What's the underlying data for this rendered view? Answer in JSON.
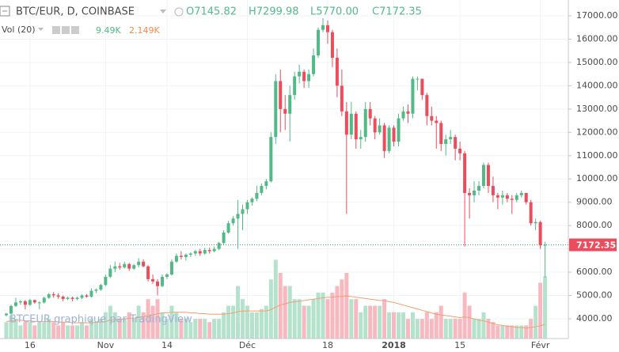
{
  "chart_data": {
    "type": "candlestick",
    "title": "BTC/EUR, D, COINBASE",
    "ohlc_text": [
      "O7145.82",
      "H7299.98",
      "L5770.00",
      "C7172.35"
    ],
    "volume_title": "Vol (20)",
    "volume_text": [
      "9.49K",
      "2.149K"
    ],
    "watermark": "BTCEUR graphique par TradingView",
    "up_color": "#53b987",
    "down_color": "#eb4d5c",
    "volume_up_color": "#b5e2cc",
    "volume_down_color": "#f7b8bf",
    "volume_ma_color": "#f0a070",
    "last_price_color": "#eb4d5c",
    "grid": true,
    "ylim": [
      3150,
      17680
    ],
    "yticks": [
      {
        "value": 4000,
        "label": "4000.00"
      },
      {
        "value": 5000,
        "label": "5000.00"
      },
      {
        "value": 6000,
        "label": "6000.00"
      },
      {
        "value": 7000,
        "label": "7000.00"
      },
      {
        "value": 8000,
        "label": "8000.00"
      },
      {
        "value": 9000,
        "label": "9000.00"
      },
      {
        "value": 10000,
        "label": "10000.00"
      },
      {
        "value": 11000,
        "label": "11000.00"
      },
      {
        "value": 12000,
        "label": "12000.00"
      },
      {
        "value": 13000,
        "label": "13000.00"
      },
      {
        "value": 14000,
        "label": "14000.00"
      },
      {
        "value": 15000,
        "label": "15000.00"
      },
      {
        "value": 16000,
        "label": "16000.00"
      },
      {
        "value": 17000,
        "label": "17000.00"
      }
    ],
    "xticks": [
      {
        "value": 5,
        "label": "16"
      },
      {
        "value": 21,
        "label": "Nov"
      },
      {
        "value": 34,
        "label": "14"
      },
      {
        "value": 51,
        "label": "Déc"
      },
      {
        "value": 68,
        "label": "18"
      },
      {
        "value": 82,
        "label": "2018"
      },
      {
        "value": 96,
        "label": "15"
      },
      {
        "value": 113,
        "label": "Févr"
      }
    ],
    "candles": [
      [
        4150,
        4250,
        4100,
        4220
      ],
      [
        4220,
        4600,
        4200,
        4550
      ],
      [
        4550,
        4900,
        4500,
        4700
      ],
      [
        4700,
        4800,
        4600,
        4750
      ],
      [
        4750,
        4800,
        4400,
        4600
      ],
      [
        4600,
        4850,
        4550,
        4800
      ],
      [
        4800,
        4820,
        4650,
        4700
      ],
      [
        4700,
        4750,
        4400,
        4700
      ],
      [
        4700,
        4950,
        4650,
        4900
      ],
      [
        4900,
        5100,
        4850,
        5050
      ],
      [
        5050,
        5150,
        4900,
        5000
      ],
      [
        5000,
        5100,
        4850,
        4950
      ],
      [
        4950,
        5000,
        4750,
        4850
      ],
      [
        4850,
        4950,
        4800,
        4900
      ],
      [
        4900,
        4950,
        4750,
        4850
      ],
      [
        4850,
        4950,
        4800,
        4900
      ],
      [
        4900,
        5050,
        4850,
        5000
      ],
      [
        5000,
        5050,
        4900,
        4950
      ],
      [
        4950,
        5300,
        4900,
        5200
      ],
      [
        5200,
        5300,
        5100,
        5250
      ],
      [
        5250,
        5500,
        5200,
        5450
      ],
      [
        5450,
        5900,
        5400,
        5800
      ],
      [
        5800,
        6300,
        5750,
        6150
      ],
      [
        6150,
        6450,
        6000,
        6250
      ],
      [
        6250,
        6400,
        6100,
        6200
      ],
      [
        6200,
        6450,
        6150,
        6350
      ],
      [
        6350,
        6400,
        6050,
        6150
      ],
      [
        6150,
        6350,
        6100,
        6300
      ],
      [
        6300,
        6600,
        6200,
        6450
      ],
      [
        6450,
        6550,
        6200,
        6250
      ],
      [
        6250,
        6300,
        5600,
        5700
      ],
      [
        5700,
        5900,
        5500,
        5600
      ],
      [
        5600,
        5700,
        5000,
        5400
      ],
      [
        5400,
        5900,
        5350,
        5800
      ],
      [
        5800,
        5950,
        5700,
        5900
      ],
      [
        5900,
        6550,
        5850,
        6450
      ],
      [
        6450,
        6800,
        6400,
        6700
      ],
      [
        6700,
        6900,
        6550,
        6650
      ],
      [
        6650,
        6800,
        6500,
        6750
      ],
      [
        6750,
        6850,
        6650,
        6800
      ],
      [
        6800,
        6950,
        6700,
        6900
      ],
      [
        6900,
        7000,
        6700,
        6800
      ],
      [
        6800,
        7050,
        6750,
        6950
      ],
      [
        6950,
        7050,
        6800,
        6900
      ],
      [
        6900,
        7100,
        6850,
        7000
      ],
      [
        7000,
        7300,
        6950,
        7250
      ],
      [
        7250,
        7800,
        7200,
        7700
      ],
      [
        7700,
        8200,
        7650,
        8100
      ],
      [
        8100,
        8400,
        8000,
        8300
      ],
      [
        8300,
        9100,
        7000,
        8500
      ],
      [
        8500,
        8900,
        7800,
        8700
      ],
      [
        8700,
        9100,
        8500,
        9000
      ],
      [
        9000,
        9200,
        8850,
        9150
      ],
      [
        9150,
        9700,
        9050,
        9400
      ],
      [
        9400,
        9800,
        9300,
        9700
      ],
      [
        9700,
        10000,
        9550,
        9900
      ],
      [
        9900,
        12000,
        9850,
        11800
      ],
      [
        11800,
        14500,
        11500,
        14200
      ],
      [
        14200,
        14700,
        12000,
        13000
      ],
      [
        13000,
        13600,
        12100,
        12800
      ],
      [
        12800,
        14000,
        11600,
        13600
      ],
      [
        13600,
        14600,
        13400,
        14400
      ],
      [
        14400,
        14900,
        14100,
        14600
      ],
      [
        14600,
        14700,
        13900,
        14200
      ],
      [
        14200,
        14700,
        13900,
        14500
      ],
      [
        14500,
        15600,
        14400,
        15300
      ],
      [
        15300,
        16500,
        15200,
        16400
      ],
      [
        16400,
        16900,
        16300,
        16600
      ],
      [
        16600,
        16800,
        15800,
        16300
      ],
      [
        16300,
        16400,
        14800,
        15200
      ],
      [
        15200,
        15600,
        13500,
        14000
      ],
      [
        14000,
        14700,
        12700,
        12900
      ],
      [
        12900,
        13300,
        8500,
        11900
      ],
      [
        11900,
        13300,
        11700,
        12800
      ],
      [
        12800,
        12900,
        11300,
        11700
      ],
      [
        11700,
        12100,
        11300,
        11800
      ],
      [
        11800,
        13300,
        11600,
        13000
      ],
      [
        13000,
        13300,
        12300,
        12600
      ],
      [
        12600,
        12700,
        11700,
        12000
      ],
      [
        12000,
        12600,
        11900,
        12300
      ],
      [
        12300,
        12400,
        10900,
        11200
      ],
      [
        11200,
        12300,
        11100,
        12200
      ],
      [
        12200,
        12300,
        11400,
        11600
      ],
      [
        11600,
        12800,
        11400,
        12600
      ],
      [
        12600,
        13100,
        12500,
        12900
      ],
      [
        12900,
        13200,
        12400,
        12800
      ],
      [
        12800,
        14400,
        12600,
        14300
      ],
      [
        14300,
        14400,
        13800,
        14300
      ],
      [
        14300,
        14300,
        13400,
        13600
      ],
      [
        13600,
        13700,
        12300,
        12700
      ],
      [
        12700,
        13100,
        12300,
        12500
      ],
      [
        12500,
        12700,
        11300,
        12400
      ],
      [
        12400,
        12500,
        11200,
        11500
      ],
      [
        11500,
        11900,
        11000,
        11700
      ],
      [
        11700,
        12100,
        11500,
        11800
      ],
      [
        11800,
        11900,
        10800,
        11300
      ],
      [
        11300,
        11600,
        10800,
        11100
      ],
      [
        11100,
        11200,
        7100,
        9400
      ],
      [
        9400,
        9600,
        8300,
        9300
      ],
      [
        9300,
        9900,
        9000,
        9500
      ],
      [
        9500,
        9900,
        9300,
        9700
      ],
      [
        9700,
        10700,
        9600,
        10600
      ],
      [
        10600,
        10700,
        9400,
        9700
      ],
      [
        9700,
        10100,
        9000,
        9300
      ],
      [
        9300,
        9400,
        8700,
        9200
      ],
      [
        9200,
        9500,
        8900,
        9300
      ],
      [
        9300,
        9400,
        9000,
        9150
      ],
      [
        9150,
        9300,
        8500,
        9100
      ],
      [
        9100,
        9400,
        9000,
        9300
      ],
      [
        9300,
        9500,
        9200,
        9400
      ],
      [
        9400,
        9400,
        8900,
        9000
      ],
      [
        9000,
        9100,
        8000,
        8100
      ],
      [
        8100,
        8300,
        7800,
        8150
      ],
      [
        8150,
        8200,
        7000,
        7150
      ],
      [
        7145.82,
        7299.98,
        5770.0,
        7172.35
      ]
    ],
    "volume": [
      2.5,
      3.5,
      3,
      2,
      2.5,
      2.5,
      2,
      2.5,
      2.5,
      3,
      2.5,
      2,
      2.5,
      2,
      2,
      2,
      2.5,
      2,
      3,
      2.5,
      3,
      4,
      5,
      4,
      3,
      3,
      4,
      3,
      5,
      4,
      6,
      5,
      6,
      4,
      3,
      5,
      4,
      3,
      3,
      2.5,
      3,
      3,
      3,
      2.5,
      3,
      3,
      4,
      5,
      5,
      8,
      6,
      5,
      4,
      4,
      4.5,
      5,
      9,
      12,
      10,
      8,
      8,
      6,
      6,
      5,
      5,
      6,
      7,
      7,
      6,
      7,
      8,
      9,
      10,
      6,
      6,
      4,
      5,
      5,
      5,
      5,
      6,
      4,
      4,
      4,
      4,
      3,
      4,
      3,
      3,
      4,
      3,
      4,
      5,
      3,
      3,
      3,
      3,
      7,
      5,
      3,
      3,
      4,
      3,
      2.5,
      2,
      2,
      2,
      2,
      2,
      2,
      2,
      3,
      5,
      8.5,
      9.49
    ],
    "volume_ma": [
      2.6,
      2.7,
      2.8,
      2.8,
      2.7,
      2.7,
      2.6,
      2.6,
      2.6,
      2.6,
      2.6,
      2.5,
      2.5,
      2.5,
      2.4,
      2.4,
      2.4,
      2.4,
      2.4,
      2.5,
      2.5,
      2.6,
      2.8,
      2.9,
      2.9,
      3.0,
      3.1,
      3.1,
      3.2,
      3.3,
      3.5,
      3.6,
      3.8,
      3.9,
      3.9,
      4.0,
      4.0,
      4.0,
      4.0,
      3.9,
      3.9,
      3.8,
      3.8,
      3.7,
      3.7,
      3.7,
      3.7,
      3.8,
      3.9,
      4.1,
      4.2,
      4.2,
      4.2,
      4.2,
      4.2,
      4.2,
      4.4,
      4.8,
      5.1,
      5.3,
      5.5,
      5.6,
      5.7,
      5.8,
      5.9,
      6.0,
      6.1,
      6.2,
      6.3,
      6.3,
      6.4,
      6.4,
      6.5,
      6.4,
      6.3,
      6.2,
      6.1,
      6.0,
      5.9,
      5.8,
      5.8,
      5.6,
      5.5,
      5.3,
      5.1,
      4.9,
      4.7,
      4.5,
      4.3,
      4.1,
      3.9,
      3.7,
      3.6,
      3.5,
      3.4,
      3.3,
      3.2,
      3.3,
      3.2,
      3.0,
      2.8,
      2.7,
      2.5,
      2.3,
      2.1,
      2.0,
      1.9,
      1.8,
      1.7,
      1.7,
      1.6,
      1.7,
      1.8,
      1.95,
      2.149
    ]
  }
}
